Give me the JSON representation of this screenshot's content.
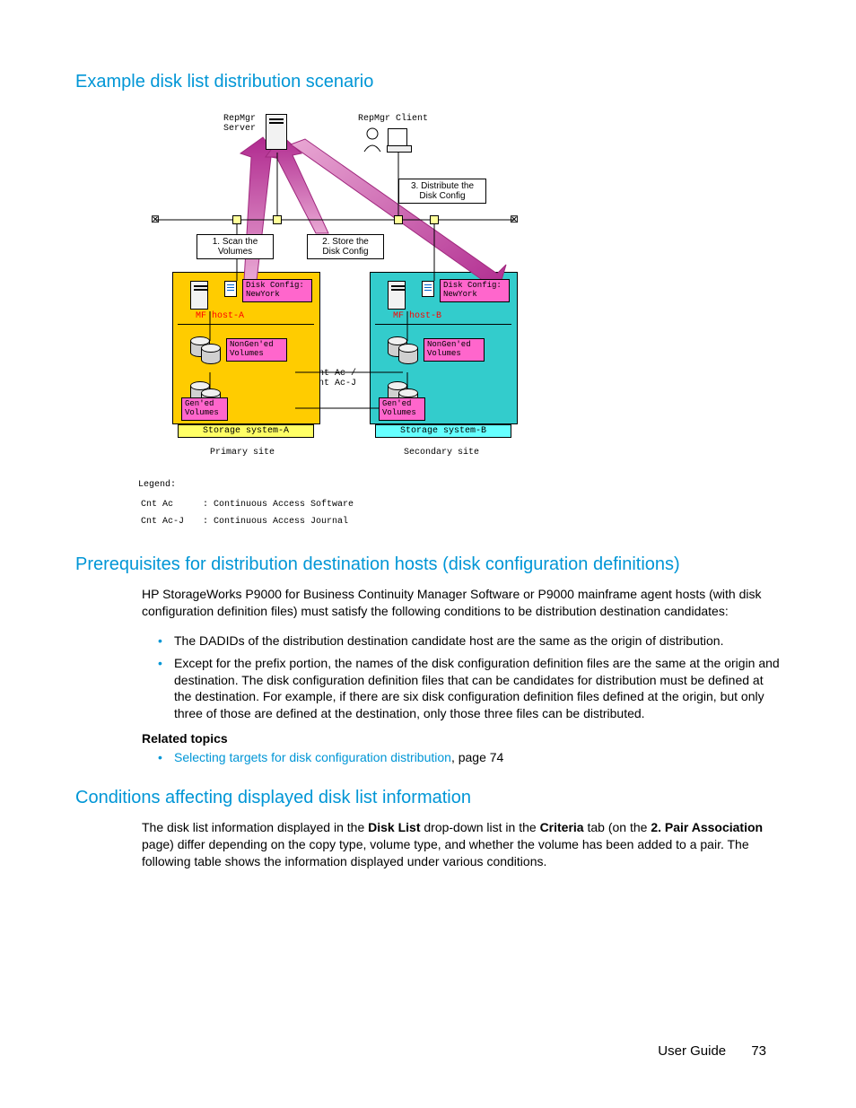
{
  "headings": {
    "h1": "Example disk list distribution scenario",
    "h2": "Prerequisites for distribution destination hosts (disk configuration definitions)",
    "h3": "Conditions affecting displayed disk list information"
  },
  "diagram": {
    "repmgr_server": "RepMgr\nServer",
    "repmgr_client": "RepMgr Client",
    "callout1": "1. Scan the\nVolumes",
    "callout2": "2. Store the\nDisk Config",
    "callout3": "3. Distribute the\nDisk Config",
    "disk_config_a": "Disk Config:\nNewYork",
    "disk_config_b": "Disk Config:\nNewYork",
    "host_a": "MF host-A",
    "host_b": "MF host-B",
    "nongen_a": "NonGen'ed\nVolumes",
    "nongen_b": "NonGen'ed\nVolumes",
    "gen_a": "Gen'ed\nVolumes",
    "gen_b": "Gen'ed\nVolumes",
    "cnt": "Cnt Ac /\nCnt Ac-J",
    "storage_a": "Storage system-A",
    "storage_b": "Storage system-B",
    "site_a": "Primary site",
    "site_b": "Secondary site",
    "legend_title": "Legend:",
    "legend_rows": [
      [
        "Cnt Ac",
        ": Continuous Access Software"
      ],
      [
        "Cnt Ac-J",
        ": Continuous Access Journal"
      ]
    ],
    "colors": {
      "box_a": "#ffcc00",
      "box_b": "#33cccc",
      "pink": "#ff66cc",
      "arrow_grad_from": "#e9a8d4",
      "arrow_grad_to": "#b02a8f"
    }
  },
  "body": {
    "para1": "HP StorageWorks P9000 for Business Continuity Manager Software or P9000 mainframe agent hosts (with disk configuration definition files) must satisfy the following conditions to be distribution destination candidates:",
    "bullet1": "The DADIDs of the distribution destination candidate host are the same as the origin of distribution.",
    "bullet2": "Except for the prefix portion, the names of the disk configuration definition files are the same at the origin and destination. The disk configuration definition files that can be candidates for distribution must be defined at the destination. For example, if there are six disk configuration definition files defined at the origin, but only three of those are defined at the destination, only those three files can be distributed.",
    "related_heading": "Related topics",
    "related_link": "Selecting targets for disk configuration distribution",
    "related_page": ", page 74",
    "para2_a": "The disk list information displayed in the ",
    "para2_b": "Disk List",
    "para2_c": " drop-down list in the ",
    "para2_d": "Criteria",
    "para2_e": " tab (on the ",
    "para2_f": "2. Pair Association",
    "para2_g": " page) differ depending on the copy type, volume type, and whether the volume has been added to a pair. The following table shows the information displayed under various conditions."
  },
  "footer": {
    "guide": "User Guide",
    "page": "73"
  }
}
